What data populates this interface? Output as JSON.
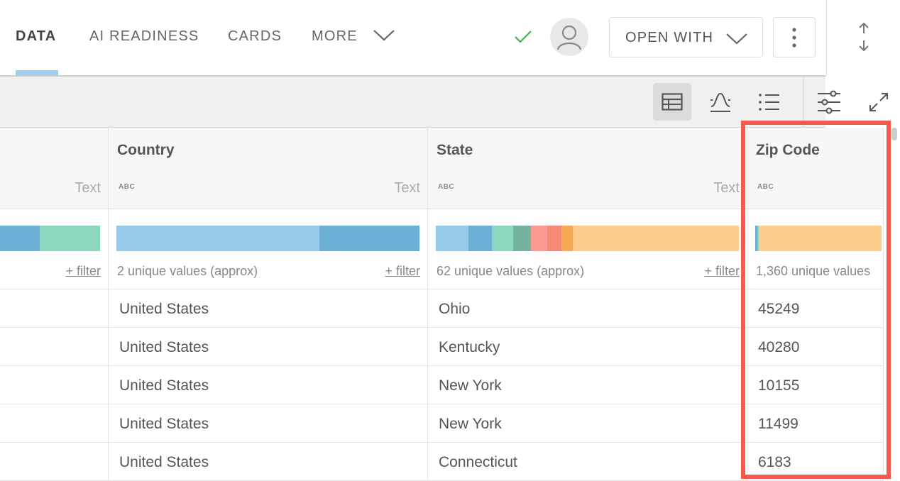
{
  "tabs": [
    {
      "label": "DATA",
      "active": true
    },
    {
      "label": "AI READINESS"
    },
    {
      "label": "CARDS"
    },
    {
      "label": "MORE"
    }
  ],
  "header": {
    "open_with_label": "OPEN WITH",
    "status_icon": "check-icon",
    "status_color": "#4caf50"
  },
  "toolbar": {
    "icons": [
      "table-view-icon",
      "distribution-icon",
      "list-view-icon",
      "settings-sliders-icon",
      "expand-icon"
    ],
    "active": "table-view-icon"
  },
  "columns": [
    {
      "name": "",
      "type": "Text",
      "unique": "",
      "filter": "+ filter",
      "bar": [
        [
          "#6db0d6",
          56
        ],
        [
          "#8dd6bf",
          85
        ]
      ]
    },
    {
      "name": "Country",
      "type": "Text",
      "type_badge": "ABC",
      "unique": "2 unique values (approx)",
      "filter": "+ filter",
      "bar": [
        [
          "#97cbea",
          286
        ],
        [
          "#6db0d6",
          141
        ]
      ]
    },
    {
      "name": "State",
      "type": "Text",
      "type_badge": "ABC",
      "unique": "62 unique values (approx)",
      "filter": "+ filter",
      "bar": [
        [
          "#97cbea",
          46
        ],
        [
          "#6db0d6",
          33
        ],
        [
          "#8dd6bf",
          30
        ],
        [
          "#74b49f",
          25
        ],
        [
          "#fa9a90",
          23
        ],
        [
          "#f68b75",
          20
        ],
        [
          "#f8a956",
          16
        ],
        [
          "#fccd8b",
          234
        ]
      ]
    },
    {
      "name": "Zip Code",
      "type_badge": "ABC",
      "unique": "1,360 unique values",
      "bar": [
        [
          "#6db0d6",
          3
        ],
        [
          "#8dd6bf",
          2
        ],
        [
          "#fccd8b",
          173
        ]
      ]
    }
  ],
  "rows": [
    [
      "",
      "United States",
      "Ohio",
      "45249"
    ],
    [
      "",
      "United States",
      "Kentucky",
      "40280"
    ],
    [
      "",
      "United States",
      "New York",
      "10155"
    ],
    [
      "",
      "United States",
      "New York",
      "11499"
    ],
    [
      "",
      "United States",
      "Connecticut",
      "6183"
    ]
  ],
  "highlight_color": "#f55a4e"
}
